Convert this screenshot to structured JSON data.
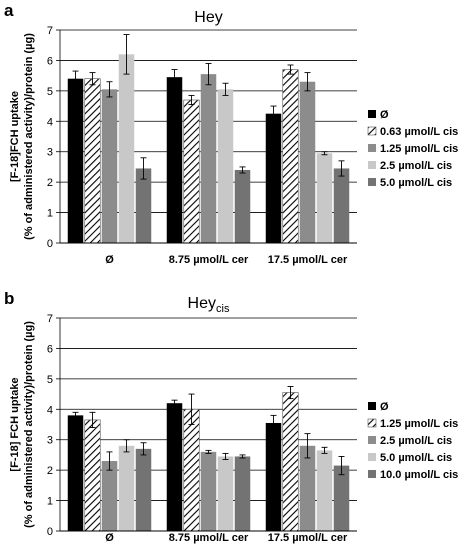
{
  "chart_data": [
    {
      "panel_label": "a",
      "type": "bar",
      "title": "Hey",
      "title_sub": "",
      "ylabel_line1": "[F-18]FCH uptake",
      "ylabel_line2": "(% of administered activity)/protein (µg)",
      "ylim": [
        0,
        7
      ],
      "yticks": [
        "0",
        "1",
        "2",
        "3",
        "4",
        "5",
        "6",
        "7"
      ],
      "grid": true,
      "legend_position": "right",
      "categories": [
        "Ø",
        "8.75 µmol/L cer",
        "17.5 µmol/L cer"
      ],
      "series": [
        {
          "name": "Ø",
          "color": "#000000",
          "pattern": "solid",
          "values": [
            5.4,
            5.45,
            4.25
          ],
          "errors": [
            0.25,
            0.25,
            0.25
          ]
        },
        {
          "name": "0.63 µmol/L cis",
          "color": "#ffffff",
          "pattern": "hatch",
          "values": [
            5.4,
            4.7,
            5.7
          ],
          "errors": [
            0.2,
            0.15,
            0.15
          ]
        },
        {
          "name": "1.25 µmol/L cis",
          "color": "#8c8c8c",
          "pattern": "solid",
          "values": [
            5.05,
            5.55,
            5.3
          ],
          "errors": [
            0.25,
            0.35,
            0.3
          ]
        },
        {
          "name": "2.5 µmol/L cis",
          "color": "#c8c8c8",
          "pattern": "solid",
          "values": [
            6.2,
            5.05,
            2.95
          ],
          "errors": [
            0.65,
            0.2,
            0.05
          ]
        },
        {
          "name": "5.0 µmol/L cis",
          "color": "#737373",
          "pattern": "solid",
          "values": [
            2.45,
            2.4,
            2.45
          ],
          "errors": [
            0.35,
            0.1,
            0.25
          ]
        }
      ]
    },
    {
      "panel_label": "b",
      "type": "bar",
      "title": "Hey",
      "title_sub": "cis",
      "ylabel_line1": "[F-18] FCH uptake",
      "ylabel_line2": "(% of administered activity)/protein (µg)",
      "ylim": [
        0,
        7
      ],
      "yticks": [
        "0",
        "1",
        "2",
        "3",
        "4",
        "5",
        "6",
        "7"
      ],
      "grid": true,
      "legend_position": "right",
      "categories": [
        "Ø",
        "8.75 µmol/L cer",
        "17.5 µmol/L cer"
      ],
      "series": [
        {
          "name": "Ø",
          "color": "#000000",
          "pattern": "solid",
          "values": [
            3.8,
            4.2,
            3.55
          ],
          "errors": [
            0.1,
            0.1,
            0.25
          ]
        },
        {
          "name": "1.25 µmol/L cis",
          "color": "#ffffff",
          "pattern": "hatch",
          "values": [
            3.65,
            4.0,
            4.55
          ],
          "errors": [
            0.25,
            0.5,
            0.2
          ]
        },
        {
          "name": "2.5 µmol/L cis",
          "color": "#8c8c8c",
          "pattern": "solid",
          "values": [
            2.3,
            2.6,
            2.8
          ],
          "errors": [
            0.3,
            0.05,
            0.4
          ]
        },
        {
          "name": "5.0 µmol/L cis",
          "color": "#c8c8c8",
          "pattern": "solid",
          "values": [
            2.8,
            2.45,
            2.65
          ],
          "errors": [
            0.2,
            0.1,
            0.1
          ]
        },
        {
          "name": "10.0 µmol/L cis",
          "color": "#737373",
          "pattern": "solid",
          "values": [
            2.7,
            2.45,
            2.15
          ],
          "errors": [
            0.2,
            0.05,
            0.3
          ]
        }
      ]
    }
  ]
}
